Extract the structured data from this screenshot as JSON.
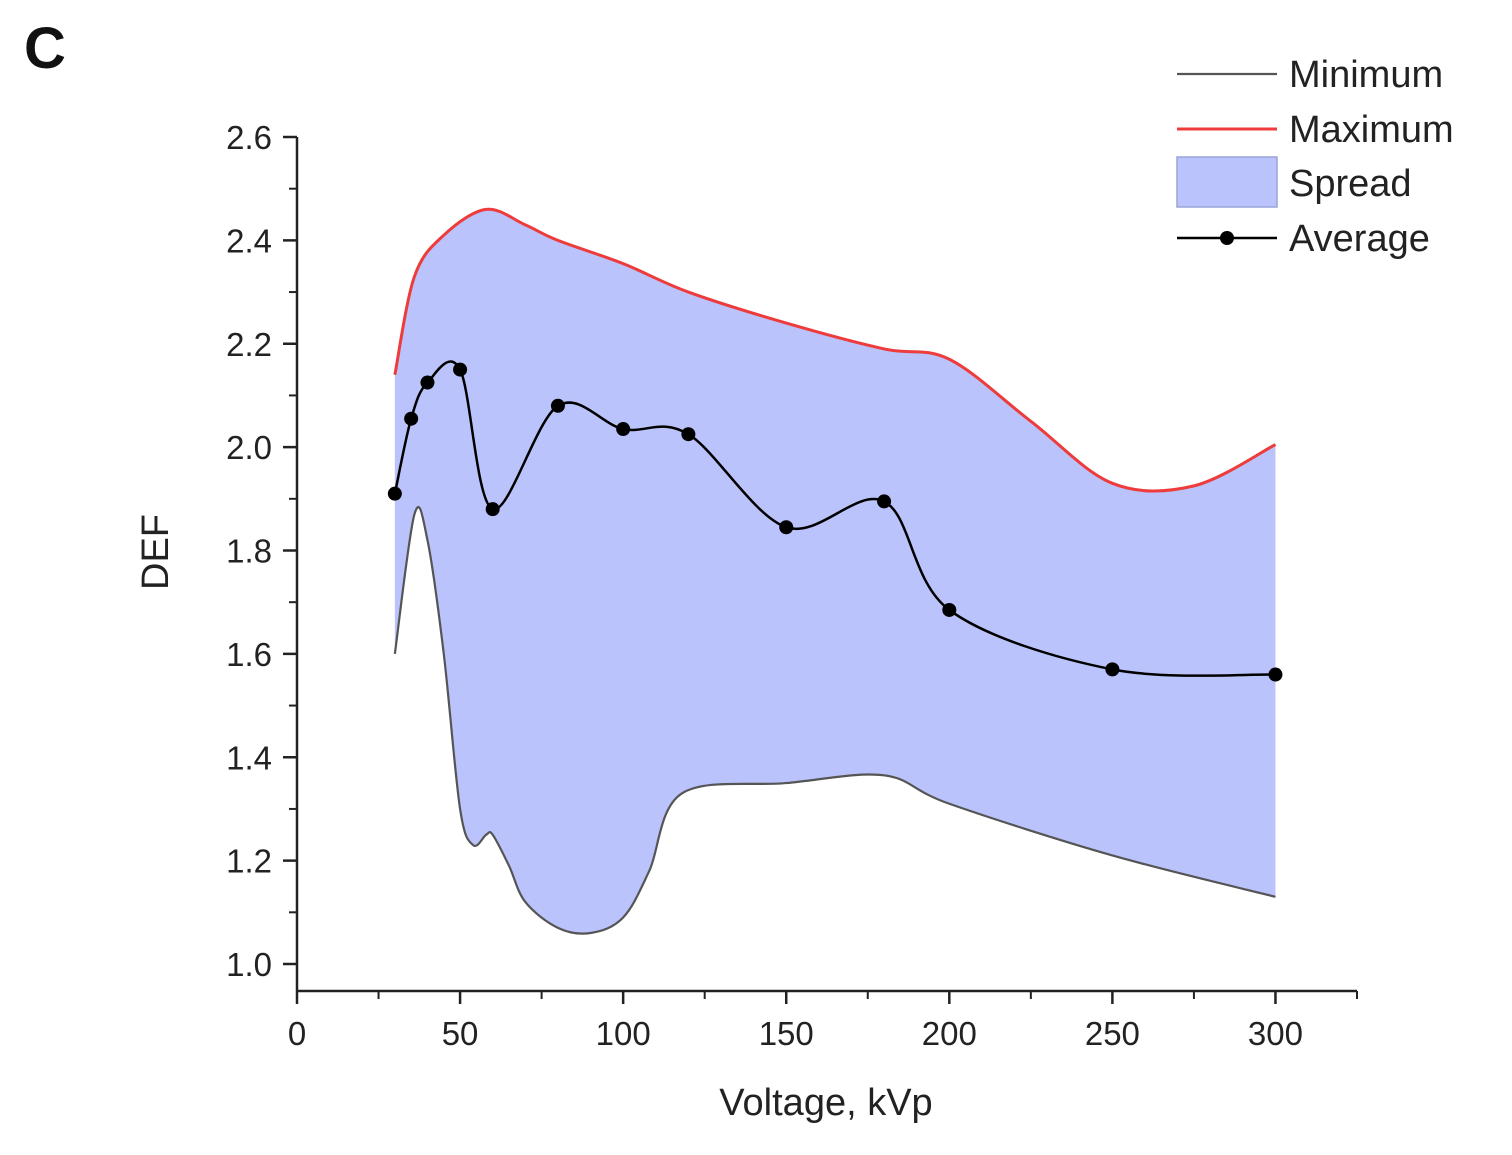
{
  "panel_label": "C",
  "chart_data": {
    "type": "line",
    "title": "",
    "xlabel": "Voltage, kVp",
    "ylabel": "DEF",
    "xlim": [
      0,
      325
    ],
    "ylim": [
      1.0,
      2.6
    ],
    "x_ticks": [
      0,
      50,
      100,
      150,
      200,
      250,
      300
    ],
    "x_tick_labels": [
      "0",
      "50",
      "100",
      "150",
      "200",
      "250",
      "300"
    ],
    "y_ticks": [
      1.0,
      1.2,
      1.4,
      1.6,
      1.8,
      2.0,
      2.2,
      2.4,
      2.6
    ],
    "y_tick_labels": [
      "1.0",
      "1.2",
      "1.4",
      "1.6",
      "1.8",
      "2.0",
      "2.2",
      "2.4",
      "2.6"
    ],
    "legend_position": "top-right",
    "colors": {
      "minimum": "#555555",
      "maximum": "#ee3b3b",
      "spread": "#bac3fb",
      "average": "#000000"
    },
    "series": [
      {
        "name": "Minimum",
        "x": [
          30,
          36,
          40,
          45,
          50,
          54,
          58,
          60,
          65,
          70,
          80,
          90,
          100,
          108,
          118,
          150,
          180,
          200,
          250,
          300
        ],
        "values": [
          1.6,
          1.87,
          1.82,
          1.6,
          1.3,
          1.23,
          1.25,
          1.25,
          1.19,
          1.12,
          1.07,
          1.06,
          1.09,
          1.18,
          1.33,
          1.35,
          1.365,
          1.31,
          1.21,
          1.13
        ]
      },
      {
        "name": "Maximum",
        "x": [
          30,
          36,
          45,
          58,
          70,
          80,
          100,
          120,
          150,
          180,
          200,
          225,
          250,
          275,
          300
        ],
        "values": [
          2.14,
          2.33,
          2.41,
          2.46,
          2.43,
          2.4,
          2.355,
          2.3,
          2.24,
          2.19,
          2.17,
          2.05,
          1.93,
          1.925,
          2.005
        ]
      },
      {
        "name": "Average",
        "x": [
          30,
          35,
          40,
          50,
          60,
          80,
          100,
          120,
          150,
          180,
          200,
          250,
          300
        ],
        "values": [
          1.91,
          2.055,
          2.125,
          2.15,
          1.88,
          2.08,
          2.035,
          2.025,
          1.845,
          1.895,
          1.685,
          1.57,
          1.56
        ]
      }
    ],
    "spread": {
      "name": "Spread",
      "between": [
        "Minimum",
        "Maximum"
      ]
    },
    "legend": [
      "Minimum",
      "Maximum",
      "Spread",
      "Average"
    ]
  }
}
